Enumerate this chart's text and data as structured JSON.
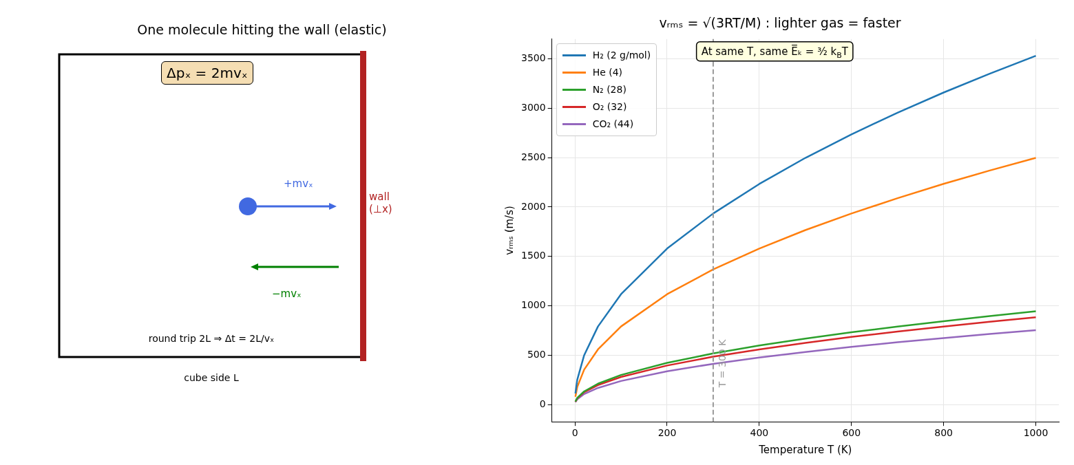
{
  "chart_data": [
    {
      "type": "other",
      "title": "One molecule hitting the wall (elastic)",
      "annotations": [
        "Δpₓ = 2mvₓ",
        "+mvₓ",
        "−mvₓ",
        "wall (⊥x)",
        "round trip 2L ⇒ Δt = 2L/vₓ",
        "cube side L"
      ]
    },
    {
      "type": "line",
      "title": "vᵣₘₛ = √(3RT/M) : lighter gas = faster",
      "xlabel": "Temperature T (K)",
      "ylabel": "vᵣₘₛ (m/s)",
      "x": [
        1,
        5,
        20,
        50,
        100,
        200,
        300,
        400,
        500,
        600,
        700,
        800,
        900,
        1000
      ],
      "series": [
        {
          "name": "H₂ (2 g/mol)",
          "color": "#1f77b4",
          "values": [
            112,
            250,
            499,
            790,
            1117,
            1579,
            1934,
            2233,
            2497,
            2735,
            2955,
            3159,
            3350,
            3531
          ]
        },
        {
          "name": "He (4)",
          "color": "#ff7f0e",
          "values": [
            79,
            177,
            353,
            558,
            790,
            1117,
            1368,
            1579,
            1766,
            1934,
            2089,
            2234,
            2369,
            2497
          ]
        },
        {
          "name": "N₂ (28)",
          "color": "#2ca02c",
          "values": [
            30,
            67,
            133,
            211,
            299,
            422,
            517,
            597,
            667,
            731,
            790,
            844,
            896,
            944
          ]
        },
        {
          "name": "O₂ (32)",
          "color": "#d62728",
          "values": [
            28,
            62,
            125,
            197,
            279,
            395,
            484,
            558,
            624,
            684,
            739,
            790,
            838,
            883
          ]
        },
        {
          "name": "CO₂ (44)",
          "color": "#9467bd",
          "values": [
            24,
            53,
            106,
            168,
            238,
            337,
            412,
            476,
            532,
            583,
            630,
            673,
            714,
            753
          ]
        }
      ],
      "xlim": [
        -50,
        1050
      ],
      "xticks": [
        0,
        200,
        400,
        600,
        800,
        1000
      ],
      "ylim": [
        -175,
        3700
      ],
      "yticks": [
        0,
        500,
        1000,
        1500,
        2000,
        2500,
        3000,
        3500
      ],
      "grid": true,
      "legend": "top left",
      "line_style": "solid",
      "marker": "none",
      "ref_lines": [
        {
          "axis": "x",
          "value": 300,
          "label": "T = 300 K",
          "color": "#999999",
          "line_style": "dashed"
        }
      ],
      "annotations": [
        "At same T, same E̅ₖ = ³⁄₂ k$_{B}$T"
      ]
    }
  ]
}
